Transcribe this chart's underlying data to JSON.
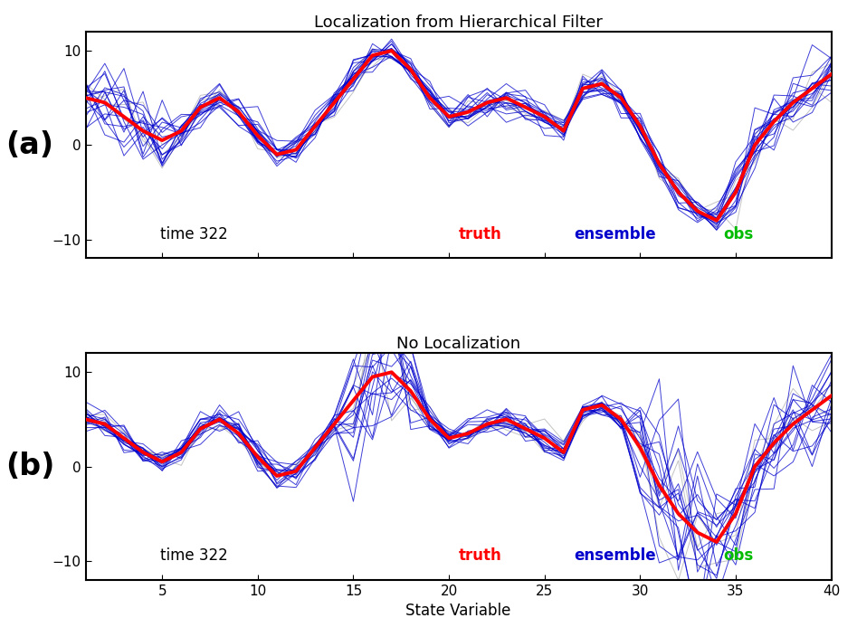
{
  "title_a": "Localization from Hierarchical Filter",
  "title_b": "No Localization",
  "xlabel": "State Variable",
  "ylim": [
    -12,
    12
  ],
  "yticks": [
    -10,
    0,
    10
  ],
  "xticks": [
    5,
    10,
    15,
    20,
    25,
    30,
    35,
    40
  ],
  "time_label": "time 322",
  "truth_label": "truth",
  "ensemble_label": "ensemble",
  "obs_label": "obs",
  "truth_color": "#ff0000",
  "ensemble_color": "#0000cc",
  "obs_color": "#00bb00",
  "time_color": "#000000",
  "background_color": "#ffffff",
  "n_ensemble": 20,
  "truth_lw": 2.8,
  "ens_lw": 0.7,
  "label_fontsize": 12,
  "title_fontsize": 13,
  "panel_label_fontsize": 24,
  "fig_bg": "#ffffff",
  "truth_values": [
    5.0,
    4.5,
    3.0,
    1.5,
    0.5,
    1.5,
    4.0,
    5.0,
    3.5,
    1.0,
    -1.0,
    -0.5,
    2.0,
    4.5,
    7.0,
    9.5,
    10.0,
    8.0,
    5.0,
    3.0,
    3.5,
    4.5,
    5.0,
    4.0,
    3.0,
    1.5,
    6.0,
    6.5,
    5.0,
    2.0,
    -2.0,
    -5.0,
    -7.0,
    -8.0,
    -5.0,
    0.0,
    2.5,
    4.5,
    6.0,
    7.5
  ]
}
